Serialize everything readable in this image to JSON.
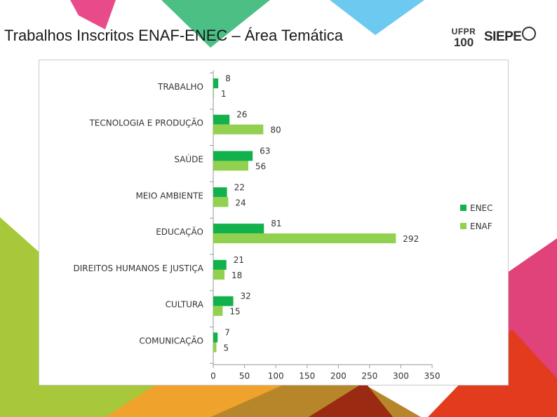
{
  "slide": {
    "title": "Trabalhos Inscritos ENAF-ENEC – Área Temática"
  },
  "logos": {
    "ufpr_text": "UFPR",
    "ufpr_number": "100",
    "siepe_text": "SIEPE"
  },
  "colors": {
    "enec": "#12b14c",
    "enaf": "#92d050",
    "axis": "#9a9a9a",
    "text": "#333333"
  },
  "chart_data": {
    "type": "bar",
    "orientation": "horizontal",
    "categories": [
      "TRABALHO",
      "TECNOLOGIA E PRODUÇÃO",
      "SAÚDE",
      "MEIO AMBIENTE",
      "EDUCAÇÃO",
      "DIREITOS HUMANOS E JUSTIÇA",
      "CULTURA",
      "COMUNICAÇÃO"
    ],
    "series": [
      {
        "name": "ENEC",
        "color": "#12b14c",
        "values": [
          8,
          26,
          63,
          22,
          81,
          21,
          32,
          7
        ]
      },
      {
        "name": "ENAF",
        "color": "#92d050",
        "values": [
          1,
          80,
          56,
          24,
          292,
          18,
          15,
          5
        ]
      }
    ],
    "xlim": [
      0,
      350
    ],
    "xticks": [
      0,
      50,
      100,
      150,
      200,
      250,
      300,
      350
    ],
    "data_labels": true,
    "grid": false,
    "legend": "right"
  }
}
